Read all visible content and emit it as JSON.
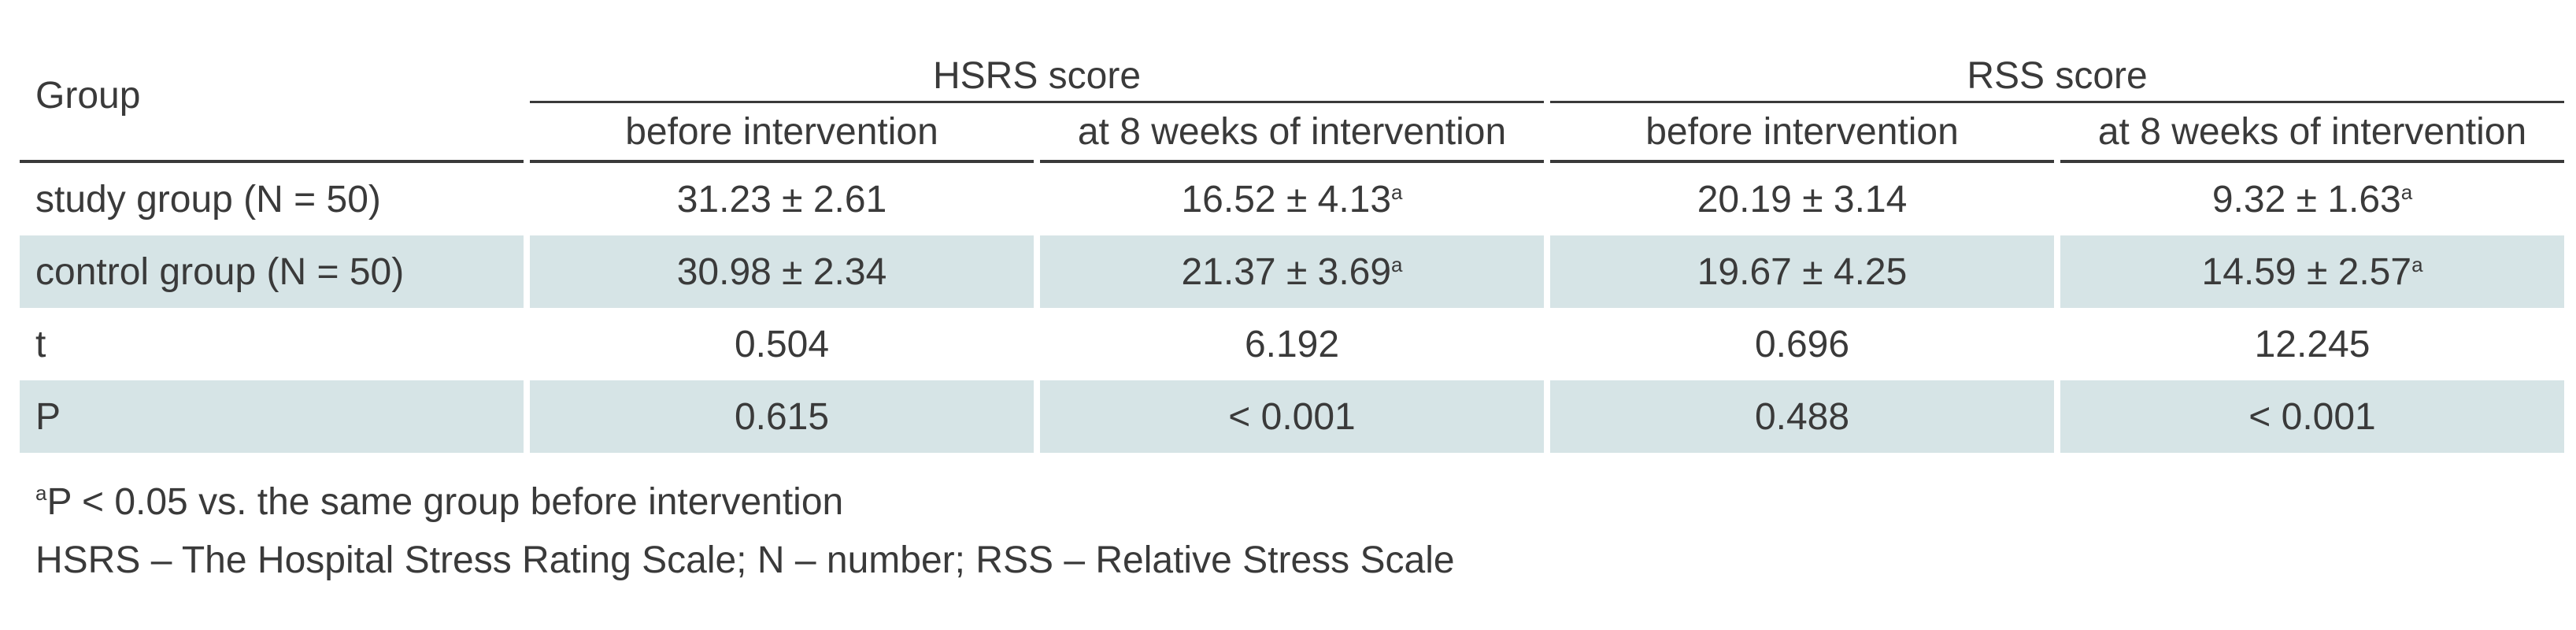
{
  "table": {
    "group_header": "Group",
    "super_headers": [
      "HSRS score",
      "RSS score"
    ],
    "sub_headers": [
      "before intervention",
      "at 8 weeks of intervention",
      "before intervention",
      "at 8 weeks of intervention"
    ],
    "rows": [
      {
        "label": "study group (N = 50)",
        "cells": [
          "31.23 ± 2.61",
          "16.52 ± 4.13",
          "20.19 ± 3.14",
          "9.32 ± 1.63"
        ],
        "marks": [
          "",
          "a",
          "",
          "a"
        ],
        "shaded": false
      },
      {
        "label": "control group (N = 50)",
        "cells": [
          "30.98 ± 2.34",
          "21.37 ± 3.69",
          "19.67 ± 4.25",
          "14.59 ± 2.57"
        ],
        "marks": [
          "",
          "a",
          "",
          "a"
        ],
        "shaded": true
      },
      {
        "label": "t",
        "cells": [
          "0.504",
          "6.192",
          "0.696",
          "12.245"
        ],
        "marks": [
          "",
          "",
          "",
          ""
        ],
        "shaded": false
      },
      {
        "label": "P",
        "cells": [
          "0.615",
          "< 0.001",
          "0.488",
          "< 0.001"
        ],
        "marks": [
          "",
          "",
          "",
          ""
        ],
        "shaded": true
      }
    ],
    "shade_color": "#d6e4e6"
  },
  "footnotes": {
    "note_a_mark": "a",
    "note_a_text": "P < 0.05 vs. the same group before intervention",
    "abbreviations": "HSRS – The Hospital Stress Rating Scale; N – number; RSS – Relative Stress Scale"
  }
}
